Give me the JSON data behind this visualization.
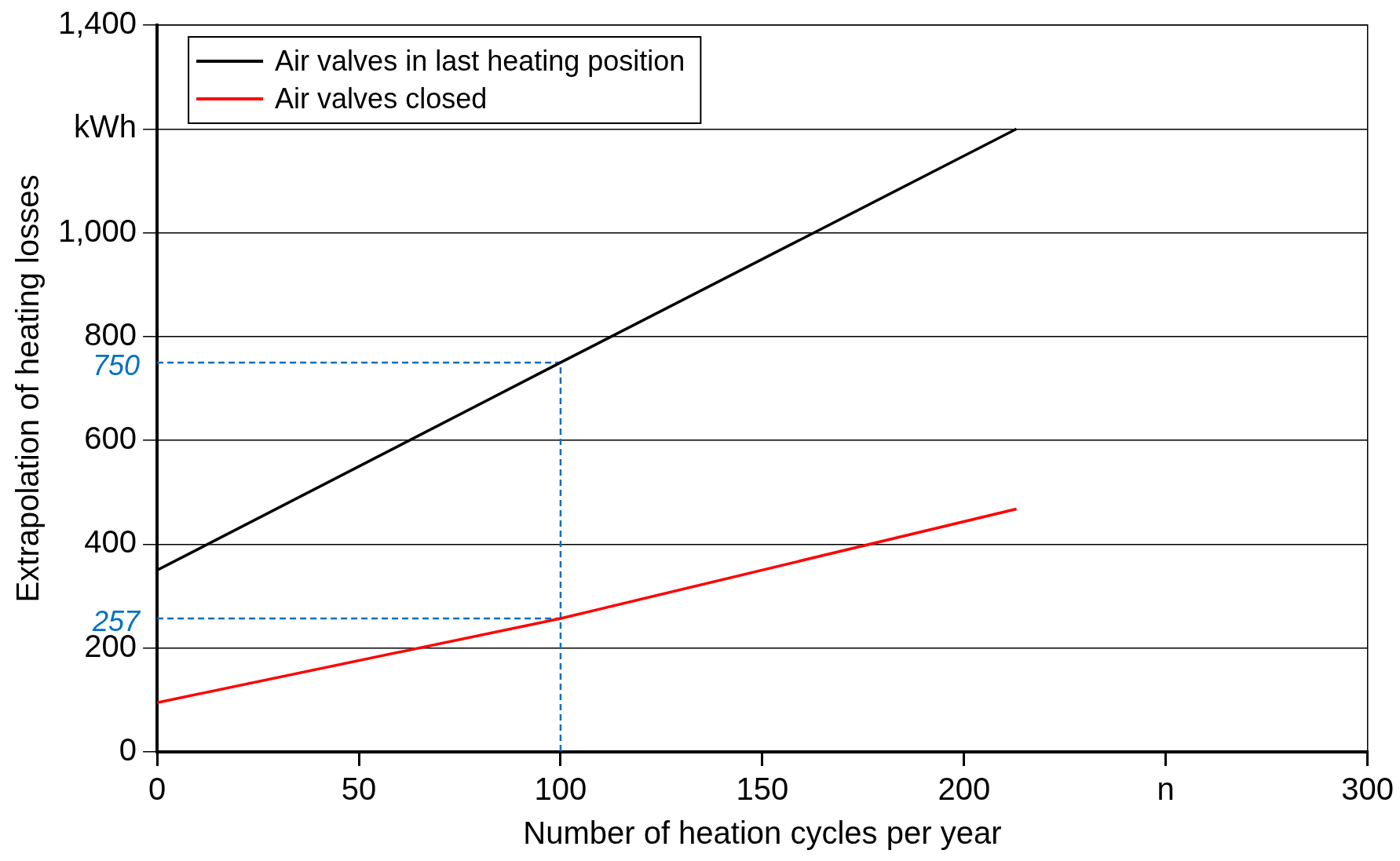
{
  "chart_data": {
    "type": "line",
    "xlabel": "Number of heation cycles per year",
    "ylabel": "Extrapolation of heating losses",
    "xlim": [
      0,
      300
    ],
    "xticks": [
      0,
      50,
      100,
      150,
      200,
      {
        "value": 250,
        "label": "n"
      },
      300
    ],
    "ylim": [
      0,
      1400
    ],
    "yticks": [
      0,
      200,
      400,
      600,
      800,
      {
        "value": 1000,
        "label": "1,000"
      },
      {
        "value": 1200,
        "label": "kWh"
      },
      {
        "value": 1400,
        "label": "1,400"
      }
    ],
    "grid": "y",
    "legend": "top left",
    "marker": "none",
    "series": [
      {
        "name": "Air valves in last heating position",
        "color": "#000000",
        "x": [
          0,
          100,
          213
        ],
        "values": [
          350,
          750,
          1200
        ]
      },
      {
        "name": "Air valves closed",
        "color": "#ff0000",
        "x": [
          0,
          100,
          213
        ],
        "values": [
          95,
          257,
          468
        ]
      },
      {
        "color": "#0070c0",
        "line_style": "dashed",
        "x": [
          0,
          100,
          100
        ],
        "values": [
          750,
          750,
          0
        ]
      },
      {
        "color": "#0070c0",
        "line_style": "dashed",
        "x": [
          0,
          100
        ],
        "values": [
          257,
          257
        ]
      }
    ],
    "annotations": [
      {
        "text": "750",
        "x": 0,
        "y": 750
      },
      {
        "text": "257",
        "x": 0,
        "y": 257
      }
    ]
  }
}
